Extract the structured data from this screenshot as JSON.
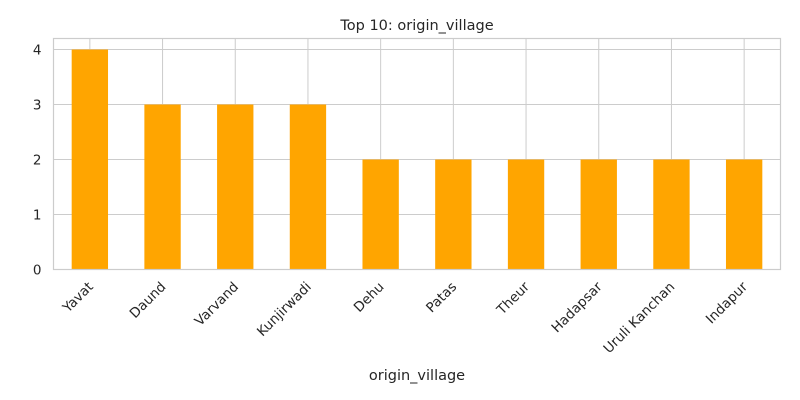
{
  "chart_data": {
    "type": "bar",
    "title": "Top 10: origin_village",
    "xlabel": "origin_village",
    "ylabel": "",
    "categories": [
      "Yavat",
      "Daund",
      "Varvand",
      "Kunjirwadi",
      "Dehu",
      "Patas",
      "Theur",
      "Hadapsar",
      "Uruli Kanchan",
      "Indapur"
    ],
    "values": [
      4,
      3,
      3,
      3,
      2,
      2,
      2,
      2,
      2,
      2
    ],
    "ylim": [
      0,
      4.2
    ],
    "yticks": [
      0,
      1,
      2,
      3,
      4
    ],
    "grid": true,
    "bar_color": "#ffa500",
    "x_tick_rotation": 45
  }
}
